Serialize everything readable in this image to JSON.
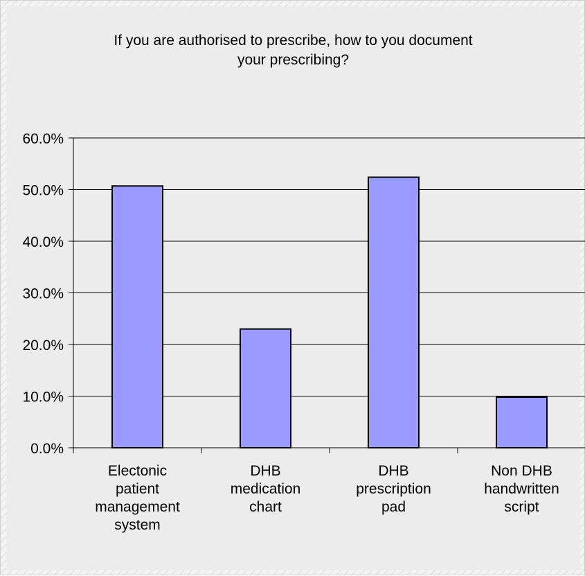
{
  "chart_data": {
    "type": "bar",
    "title": "If you are authorised to prescribe, how to you document your prescribing?",
    "title_lines": [
      "If you are authorised to prescribe, how to you document",
      "your prescribing?"
    ],
    "categories": [
      [
        "Electonic",
        "patient",
        "management",
        "system"
      ],
      [
        "DHB",
        "medication",
        "chart"
      ],
      [
        "DHB",
        "prescription",
        "pad"
      ],
      [
        "Non DHB",
        "handwritten",
        "script"
      ]
    ],
    "values": [
      50.7,
      23.0,
      52.4,
      9.8
    ],
    "ylim": [
      0,
      60
    ],
    "yticks": [
      0,
      10,
      20,
      30,
      40,
      50,
      60
    ],
    "ytick_labels": [
      "0.0%",
      "10.0%",
      "20.0%",
      "30.0%",
      "40.0%",
      "50.0%",
      "60.0%"
    ],
    "grid": true,
    "legend": false,
    "colors": {
      "bar": "#9999ff",
      "bar_edge": "#000000",
      "plot_bg": "#ececec",
      "grid": "#000000"
    }
  }
}
